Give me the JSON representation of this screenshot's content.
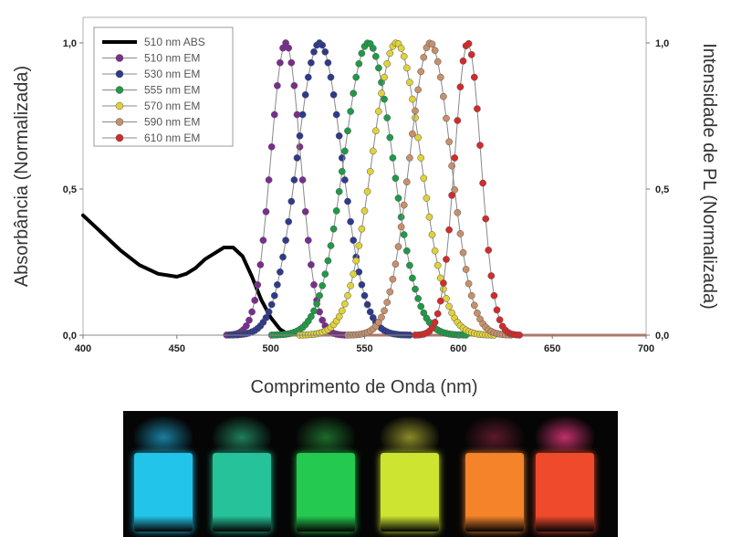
{
  "chart_data": {
    "type": "line",
    "xlabel": "Comprimento de Onda (nm)",
    "ylabel_left": "Absorbância (Normalizada)",
    "ylabel_right": "Intensidade de PL (Normalizada)",
    "xlim": [
      400,
      700
    ],
    "ylim": [
      0,
      1
    ],
    "x_ticks": [
      "400",
      "450",
      "500",
      "550",
      "600",
      "650",
      "700"
    ],
    "y_ticks_left": [
      "0,0",
      "0,5",
      "1,0"
    ],
    "y_ticks_right": [
      "0,0",
      "0,5",
      "1,0"
    ],
    "grid": false,
    "legend_position": "top-left",
    "series": [
      {
        "name": "510 nm ABS",
        "color": "#000000",
        "style": "line",
        "x": [
          400,
          410,
          420,
          430,
          440,
          450,
          455,
          460,
          465,
          470,
          475,
          480,
          485,
          490,
          495,
          500,
          505,
          510
        ],
        "values": [
          0.41,
          0.35,
          0.29,
          0.24,
          0.21,
          0.2,
          0.21,
          0.23,
          0.26,
          0.28,
          0.3,
          0.3,
          0.27,
          0.2,
          0.12,
          0.06,
          0.02,
          0.0
        ]
      },
      {
        "name": "510 nm EM",
        "color": "#7b2d8e",
        "style": "markers",
        "peak": 508,
        "width": 8
      },
      {
        "name": "530 nm EM",
        "color": "#2e3a8c",
        "style": "markers",
        "peak": 526,
        "width": 12
      },
      {
        "name": "555 nm EM",
        "color": "#1f9a47",
        "style": "markers",
        "peak": 552,
        "width": 13
      },
      {
        "name": "570 nm EM",
        "color": "#e0d23a",
        "style": "markers",
        "peak": 567,
        "width": 13
      },
      {
        "name": "590 nm EM",
        "color": "#c8906a",
        "style": "markers",
        "peak": 585,
        "width": 11
      },
      {
        "name": "610 nm EM",
        "color": "#d42a2a",
        "style": "markers",
        "peak": 605,
        "width": 7
      }
    ]
  },
  "photo": {
    "vial_colors": [
      "#23c4ea",
      "#26c39a",
      "#24c94f",
      "#cde430",
      "#f4832a",
      "#ef4a2c"
    ],
    "vial_cap_colors": [
      "#1a7fa0",
      "#1f7e5c",
      "#1d6a2a",
      "#8a8a2a",
      "#5a1a2a",
      "#c0306a"
    ]
  }
}
